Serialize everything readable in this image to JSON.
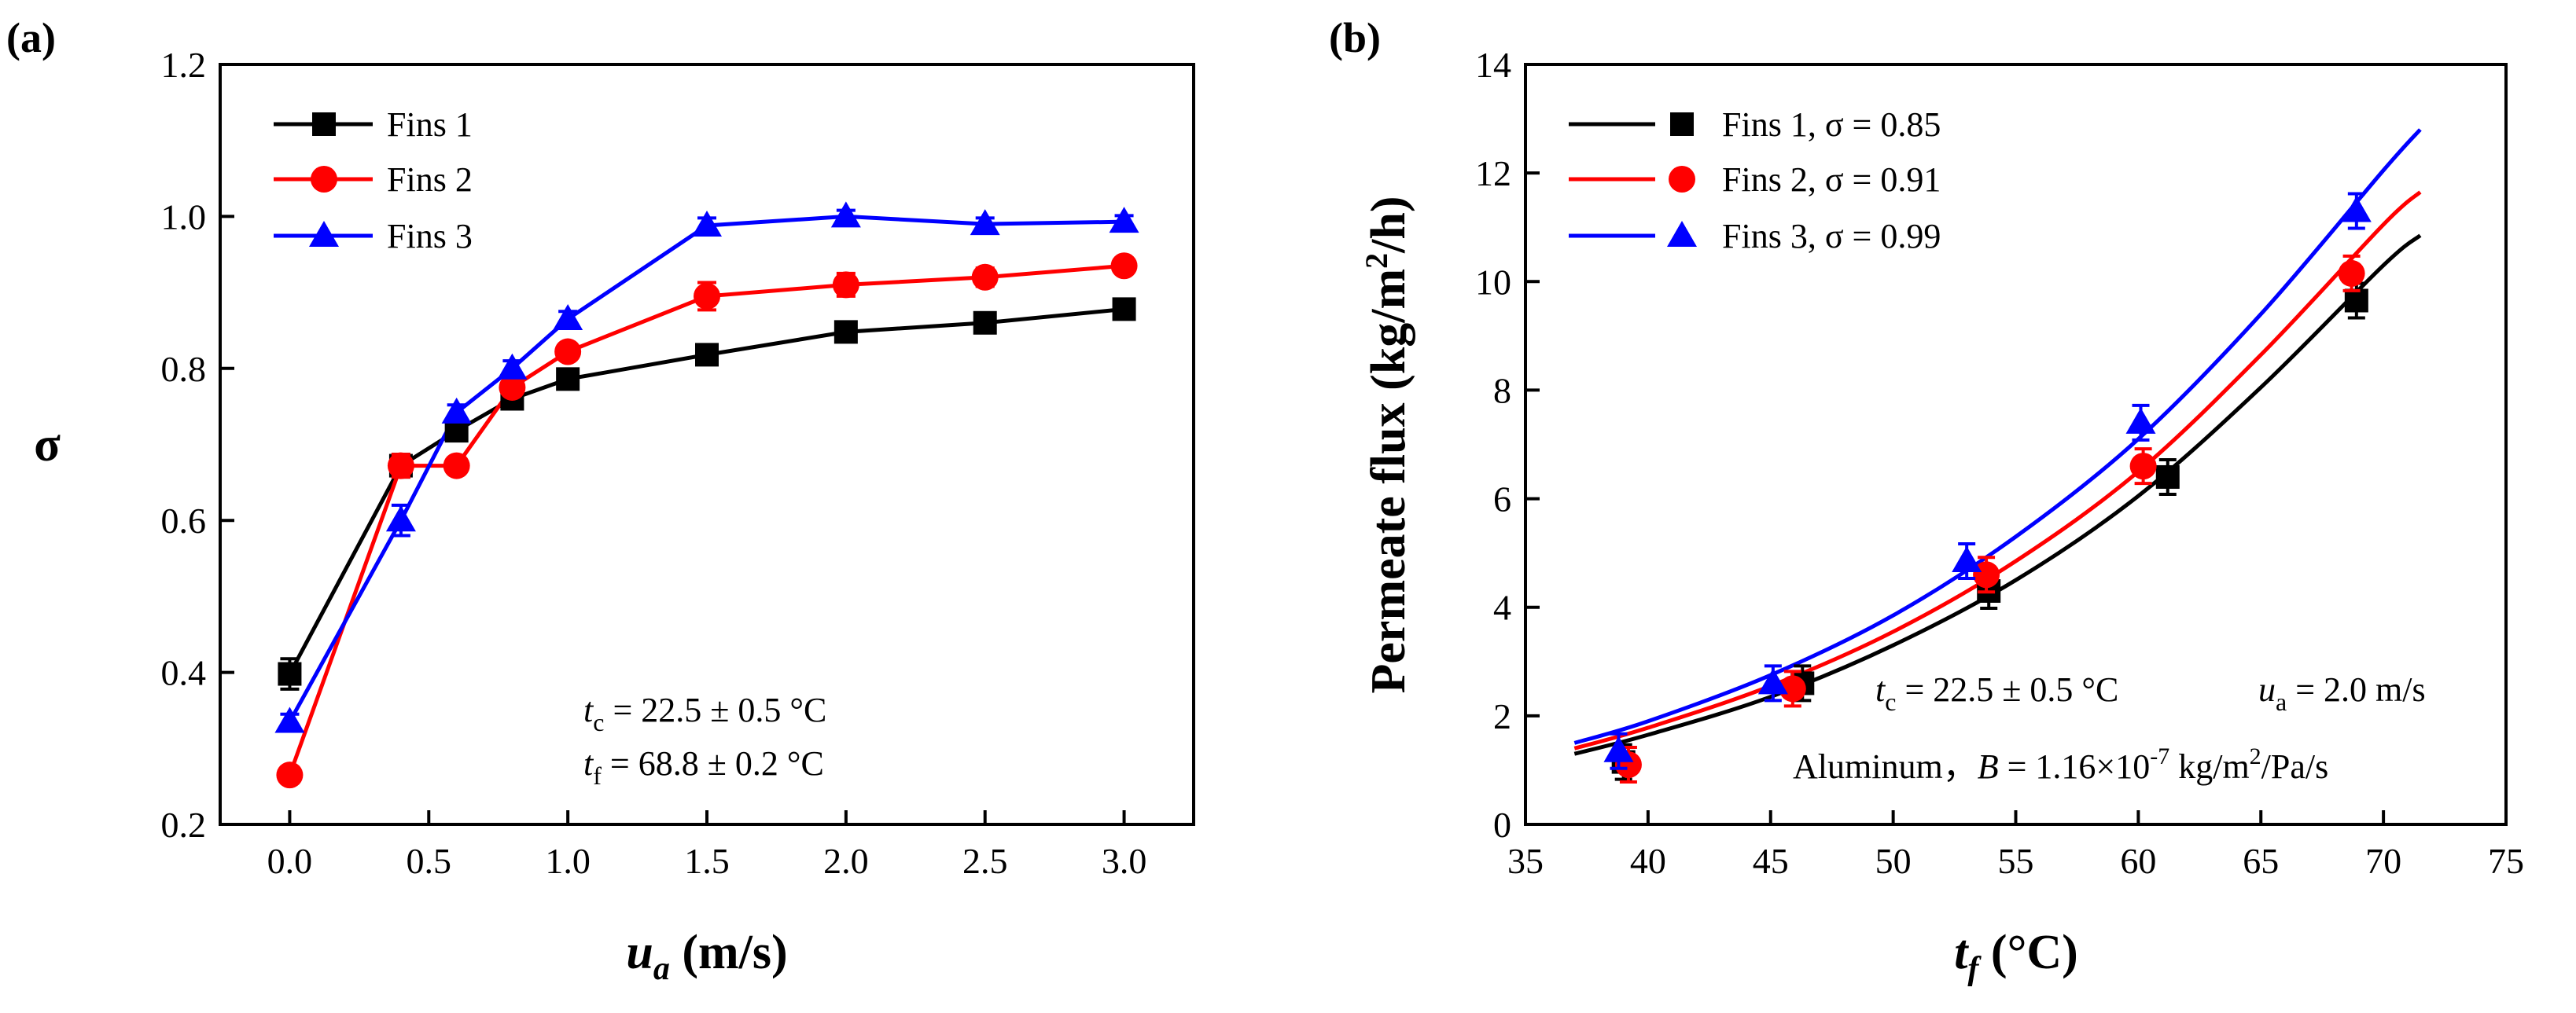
{
  "chart_data": [
    {
      "type": "line",
      "panel_label": "(a)",
      "xlabel": "u",
      "xlabel_sub": "a",
      "xlabel_unit": " (m/s)",
      "ylabel": "σ",
      "xlim": [
        -0.25,
        3.25
      ],
      "ylim": [
        0.2,
        1.2
      ],
      "xticks": [
        0,
        0.5,
        1.0,
        1.5,
        2.0,
        2.5,
        3.0
      ],
      "xtick_labels": [
        "0.0",
        "0.5",
        "1.0",
        "1.5",
        "2.0",
        "2.5",
        "3.0"
      ],
      "yticks": [
        0.2,
        0.4,
        0.6,
        0.8,
        1.0,
        1.2
      ],
      "ytick_labels": [
        "0.2",
        "0.4",
        "0.6",
        "0.8",
        "1.0",
        "1.2"
      ],
      "legend_position": "top-left",
      "x": [
        0,
        0.4,
        0.6,
        0.8,
        1.0,
        1.5,
        2.0,
        2.5,
        3.0
      ],
      "series": [
        {
          "name": "Fins 1",
          "color": "#000000",
          "marker": "square",
          "values": [
            0.398,
            0.672,
            0.718,
            0.76,
            0.786,
            0.818,
            0.848,
            0.86,
            0.878
          ],
          "errors": [
            0.02,
            0.015,
            0.012,
            0.012,
            0.01,
            0.01,
            0.01,
            0.01,
            0.01
          ]
        },
        {
          "name": "Fins 2",
          "color": "#ff0000",
          "marker": "circle",
          "values": [
            0.265,
            0.672,
            0.672,
            0.775,
            0.822,
            0.895,
            0.91,
            0.92,
            0.935
          ],
          "errors": [
            0.01,
            0.015,
            0.01,
            0.01,
            0.01,
            0.018,
            0.015,
            0.012,
            0.01
          ]
        },
        {
          "name": "Fins 3",
          "color": "#0000ff",
          "marker": "triangle",
          "values": [
            0.335,
            0.6,
            0.742,
            0.8,
            0.865,
            0.988,
            1.0,
            0.99,
            0.993
          ],
          "errors": [
            0.01,
            0.02,
            0.01,
            0.01,
            0.01,
            0.01,
            0.008,
            0.008,
            0.008
          ]
        }
      ],
      "annotations": [
        {
          "var": "t",
          "sub": "c",
          "text": " = 22.5 ± 0.5 °C"
        },
        {
          "var": "t",
          "sub": "f",
          "text": " = 68.8 ± 0.2 °C"
        }
      ]
    },
    {
      "type": "scatter",
      "panel_label": "(b)",
      "xlabel": "t",
      "xlabel_sub": "f",
      "xlabel_unit": " (°C)",
      "ylabel": "Permeate flux (kg/m",
      "ylabel_sup": "2",
      "ylabel_end": "/h)",
      "xlim": [
        35,
        75
      ],
      "ylim": [
        0,
        14
      ],
      "xticks": [
        35,
        40,
        45,
        50,
        55,
        60,
        65,
        70,
        75
      ],
      "xtick_labels": [
        "35",
        "40",
        "45",
        "50",
        "55",
        "60",
        "65",
        "70",
        "75"
      ],
      "yticks": [
        0,
        2,
        4,
        6,
        8,
        10,
        12,
        14
      ],
      "ytick_labels": [
        "0",
        "2",
        "4",
        "6",
        "8",
        "10",
        "12",
        "14"
      ],
      "legend_position": "top-left",
      "series": [
        {
          "name": "Fins 1, σ = 0.85",
          "color": "#000000",
          "marker": "square",
          "x": [
            39.0,
            46.3,
            53.9,
            61.2,
            68.9
          ],
          "values": [
            1.15,
            2.6,
            4.3,
            6.4,
            9.65
          ],
          "curve_x": [
            37,
            40,
            45,
            50,
            55,
            60,
            65,
            70,
            71.5
          ],
          "curve_y": [
            1.3,
            1.65,
            2.35,
            3.3,
            4.5,
            6.05,
            8.05,
            10.3,
            10.85
          ]
        },
        {
          "name": "Fins 2, σ = 0.91",
          "color": "#ff0000",
          "marker": "circle",
          "x": [
            39.2,
            45.9,
            53.8,
            60.2,
            68.7
          ],
          "values": [
            1.1,
            2.5,
            4.6,
            6.6,
            10.15
          ],
          "curve_x": [
            37,
            40,
            45,
            50,
            55,
            60,
            65,
            70,
            71.5
          ],
          "curve_y": [
            1.4,
            1.78,
            2.55,
            3.55,
            4.85,
            6.5,
            8.65,
            11.05,
            11.65
          ]
        },
        {
          "name": "Fins 3, σ = 0.99",
          "color": "#0000ff",
          "marker": "triangle",
          "x": [
            38.8,
            45.1,
            53.0,
            60.1,
            68.9
          ],
          "values": [
            1.35,
            2.6,
            4.85,
            7.4,
            11.3
          ],
          "curve_x": [
            37,
            40,
            45,
            50,
            55,
            60,
            65,
            70,
            71.5
          ],
          "curve_y": [
            1.5,
            1.9,
            2.75,
            3.85,
            5.3,
            7.1,
            9.4,
            12.05,
            12.8
          ]
        }
      ],
      "annotations": [
        {
          "var": "t",
          "sub": "c",
          "text": " = 22.5 ± 0.5 °C"
        },
        {
          "var": "u",
          "sub": "a",
          "text": " = 2.0 m/s"
        },
        {
          "prefix": "Aluminum，",
          "var": "B",
          "text": " = 1.16×10",
          "sup": "-7",
          "text2": " kg/m",
          "sup2": "2",
          "text3": "/Pa/s"
        }
      ]
    }
  ]
}
